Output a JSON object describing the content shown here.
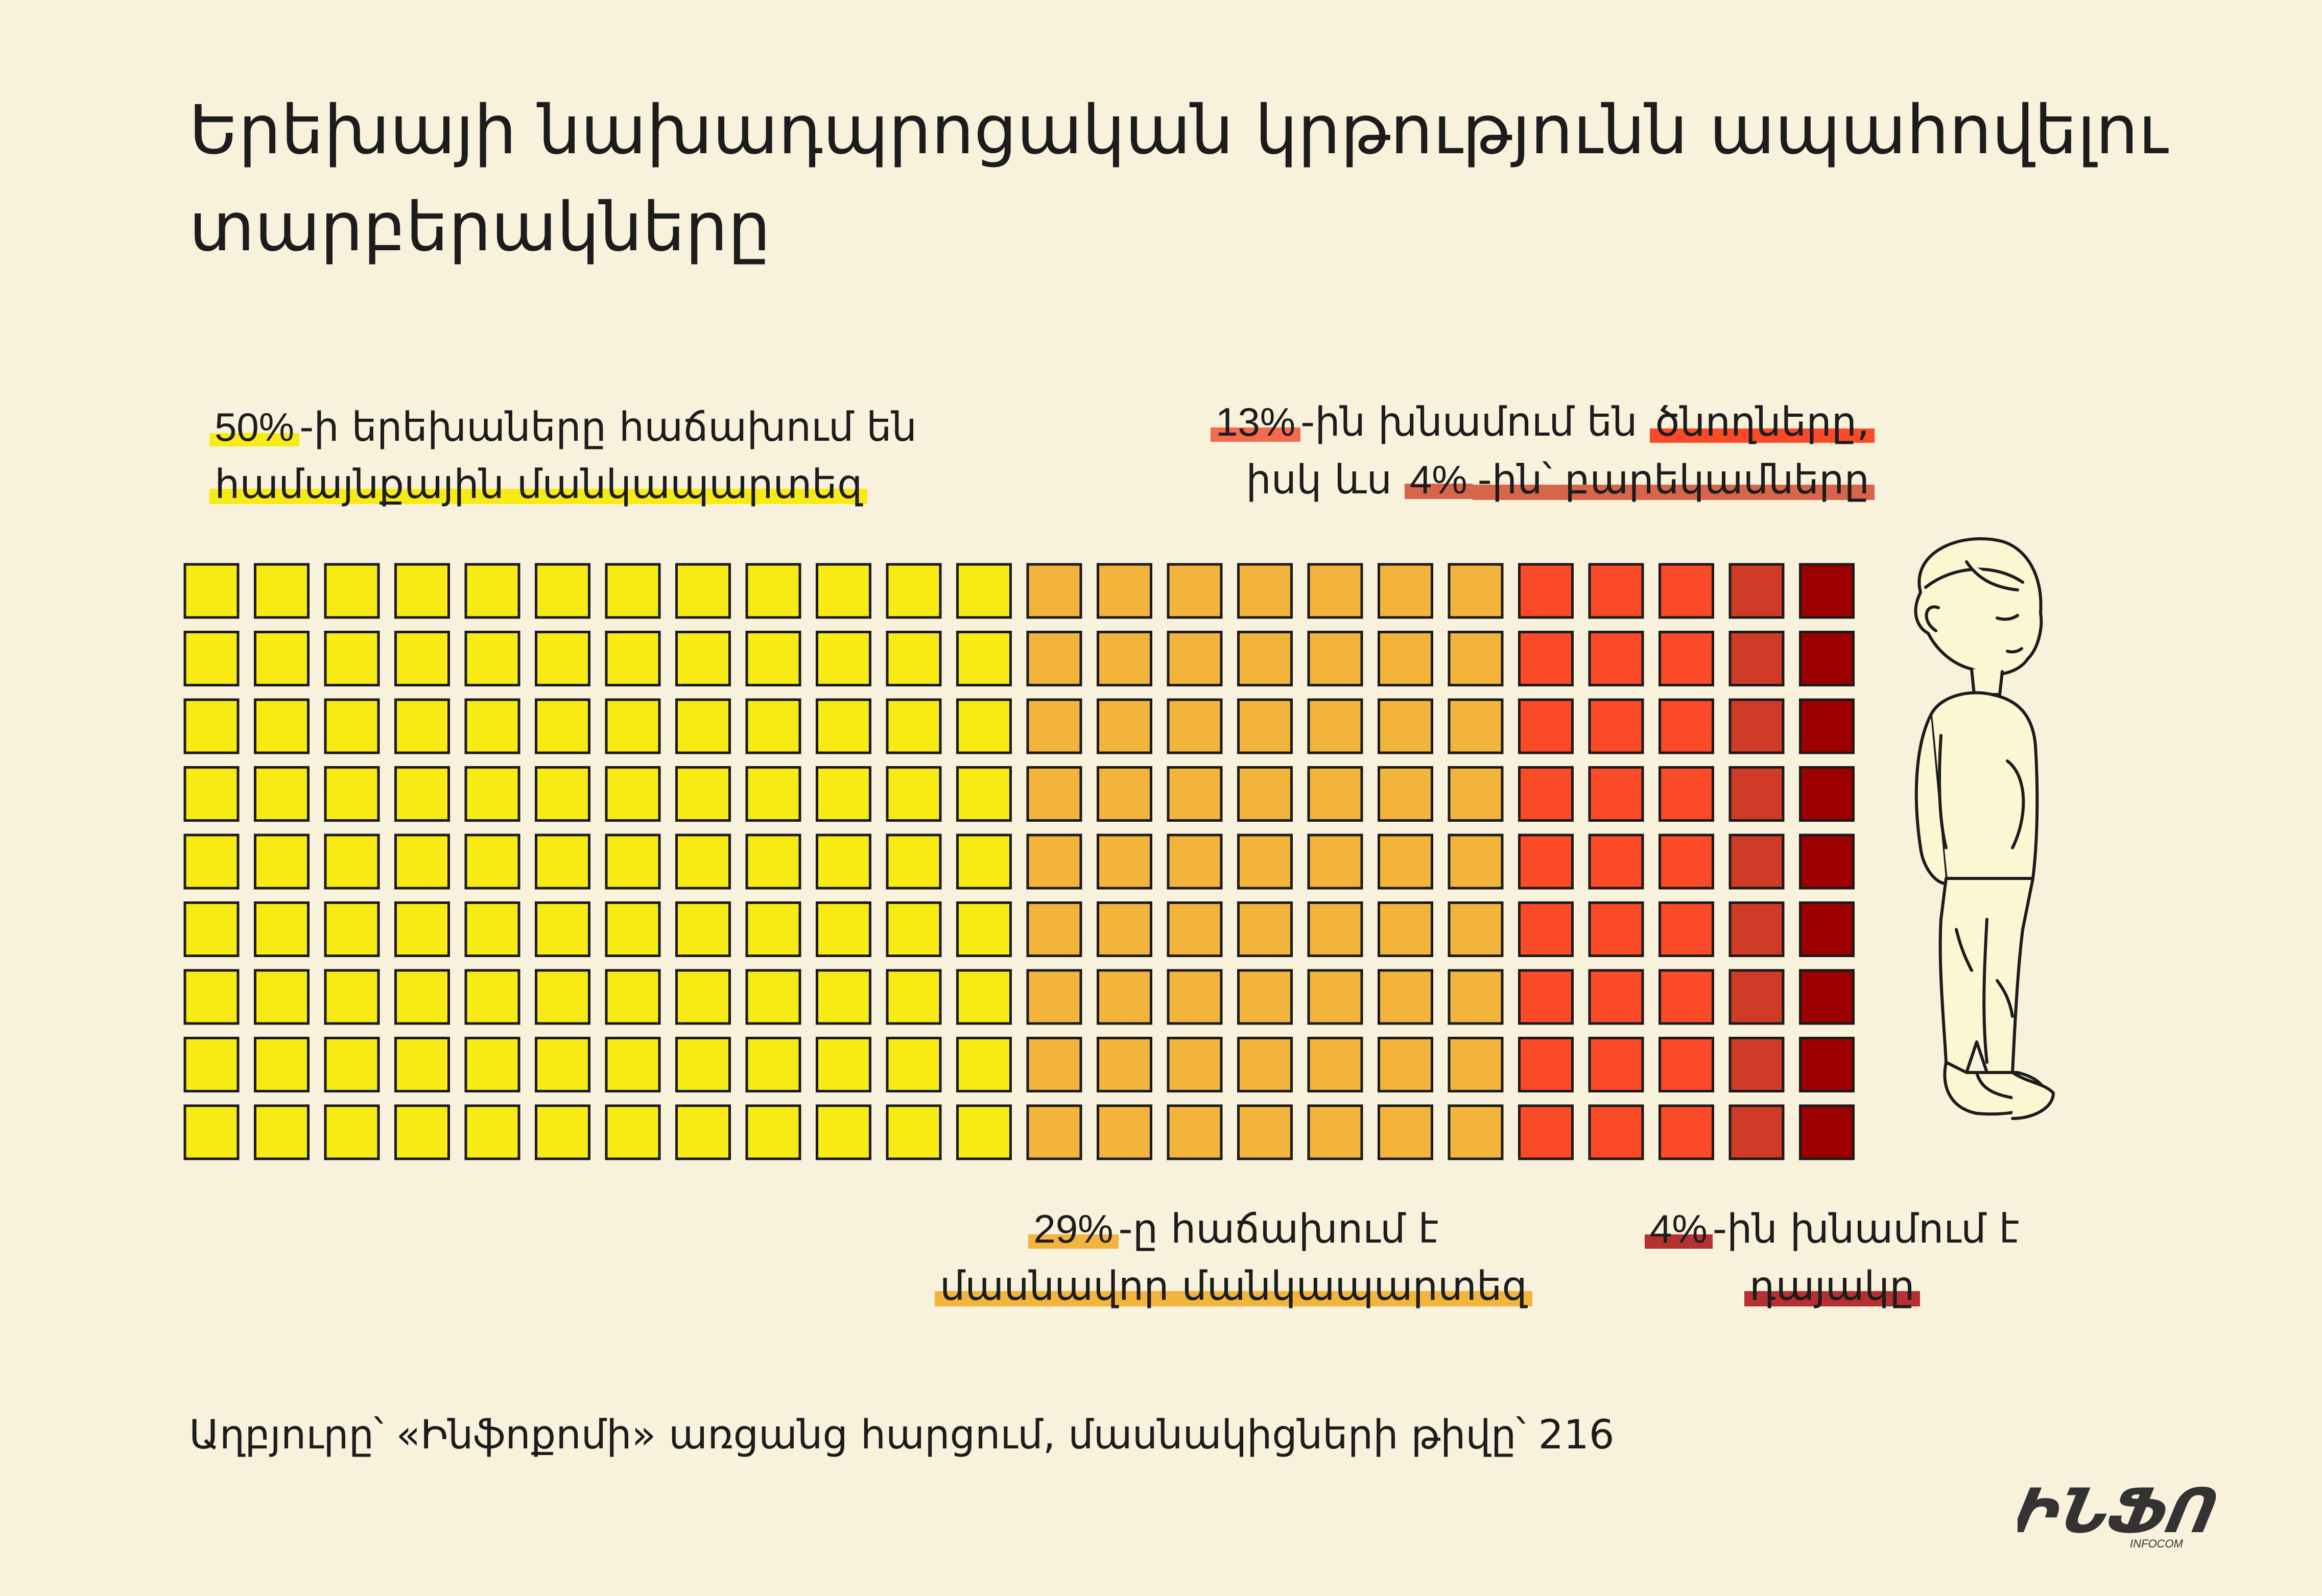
{
  "title": "Երեխայի նախադպրոցական կրթությունն ապահովելու տարբերակները",
  "chart_data": {
    "type": "waffle",
    "grid": {
      "rows": 9,
      "cols": 24
    },
    "total": 216,
    "categories": [
      {
        "key": "community",
        "value": 50,
        "columns": 12,
        "color": "#f8eb14"
      },
      {
        "key": "private",
        "value": 29,
        "columns": 7,
        "color": "#f2b43a"
      },
      {
        "key": "parents",
        "value": 13,
        "columns": 3,
        "color": "#fa4a28"
      },
      {
        "key": "relatives",
        "value": 4,
        "columns": 1,
        "color": "#cf3b27"
      },
      {
        "key": "nanny",
        "value": 4,
        "columns": 1,
        "color": "#9c0000"
      }
    ]
  },
  "annotations": {
    "community": {
      "pct": "50%",
      "line1_rest": "-ի երեխաները հաճախում են",
      "line2": "համայնքային մանկապարտեզ",
      "highlight": "#f8eb14"
    },
    "parents": {
      "pct": "13%",
      "line1_mid": "-ին խնամում են ",
      "line1_end": "ծնողները,",
      "line2_start": "իսկ ևս ",
      "pct2": "4%",
      "line2_end": "-ին՝ բարեկամները",
      "highlight": "#f36b4b",
      "highlight2": "#fa4a28",
      "highlight3": "#d6654a"
    },
    "private": {
      "pct": "29%",
      "line1_rest": "-ը հաճախում է",
      "line2": "մասնավոր մանկապարտեզ",
      "highlight": "#f2b43a"
    },
    "nanny": {
      "pct": "4%",
      "line1_rest": "-ին խնամում է",
      "line2": "դայակը",
      "highlight": "#b53030"
    }
  },
  "source": "Աղբյուրը՝ «Ինֆոքոմի» առցանց հարցում, մասնակիցների թիվը՝ 216",
  "logo": {
    "wordmark": "ԻՆՖՈ",
    "sub": "INFOCOM"
  }
}
